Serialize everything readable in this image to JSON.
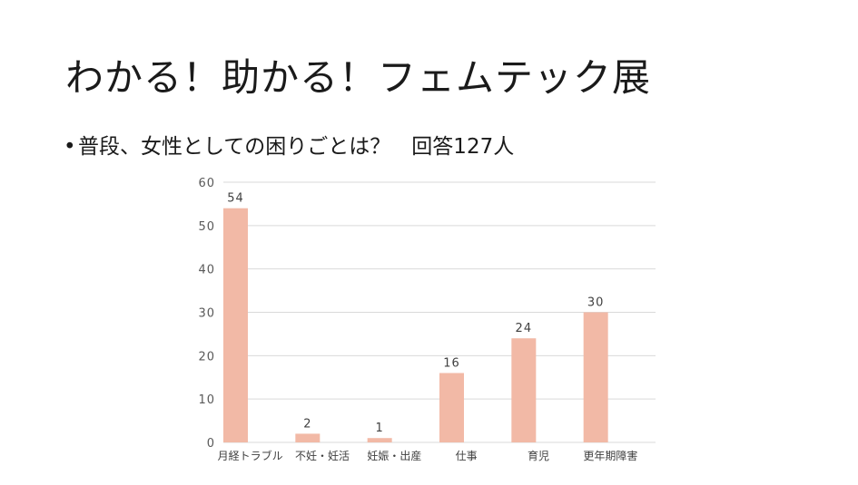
{
  "slide": {
    "title": "わかる！助かる！フェムテック展",
    "bullet_marker": "•",
    "bullet_text": "普段、女性としての困りごとは？　回答127人"
  },
  "colors": {
    "bar": "#f2b9a6",
    "grid": "#d9d9d9",
    "axis_text": "#595959",
    "label_text": "#404040"
  },
  "chart_data": {
    "type": "bar",
    "categories": [
      "月経トラブル",
      "不妊・妊活",
      "妊娠・出産",
      "仕事",
      "育児",
      "更年期障害"
    ],
    "values": [
      54,
      2,
      1,
      16,
      24,
      30
    ],
    "ylim": [
      0,
      60
    ],
    "yticks": [
      0,
      10,
      20,
      30,
      40,
      50,
      60
    ],
    "grid": true,
    "legend": "none"
  }
}
